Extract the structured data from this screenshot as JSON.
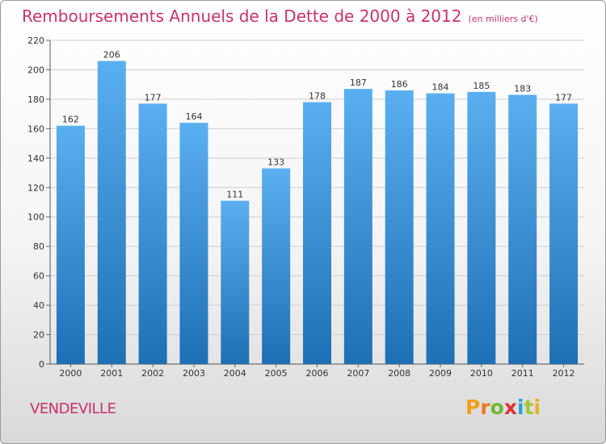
{
  "header": {
    "title": "Remboursements Annuels de la Dette de 2000 à 2012",
    "unit": "(en milliers d'€)"
  },
  "footer": {
    "city": "VENDEVILLE",
    "brand": "Proxiti"
  },
  "colors": {
    "accent": "#c8326e",
    "bar_top": "#5aaff0",
    "bar_bottom": "#1e70b4",
    "logo_letters": [
      "#f0a020",
      "#f07820",
      "#70b830",
      "#e03030",
      "#2aa0d8",
      "#a0c830",
      "#e8b020"
    ]
  },
  "chart_data": {
    "type": "bar",
    "title": "Remboursements Annuels de la Dette de 2000 à 2012",
    "subtitle": "(en milliers d'€)",
    "xlabel": "",
    "ylabel": "",
    "categories": [
      "2000",
      "2001",
      "2002",
      "2003",
      "2004",
      "2005",
      "2006",
      "2007",
      "2008",
      "2009",
      "2010",
      "2011",
      "2012"
    ],
    "values": [
      162,
      206,
      177,
      164,
      111,
      133,
      178,
      187,
      186,
      184,
      185,
      183,
      177
    ],
    "ylim": [
      0,
      220
    ],
    "yticks": [
      0,
      20,
      40,
      60,
      80,
      100,
      120,
      140,
      160,
      180,
      200,
      220
    ],
    "grid": true,
    "legend": "none"
  }
}
